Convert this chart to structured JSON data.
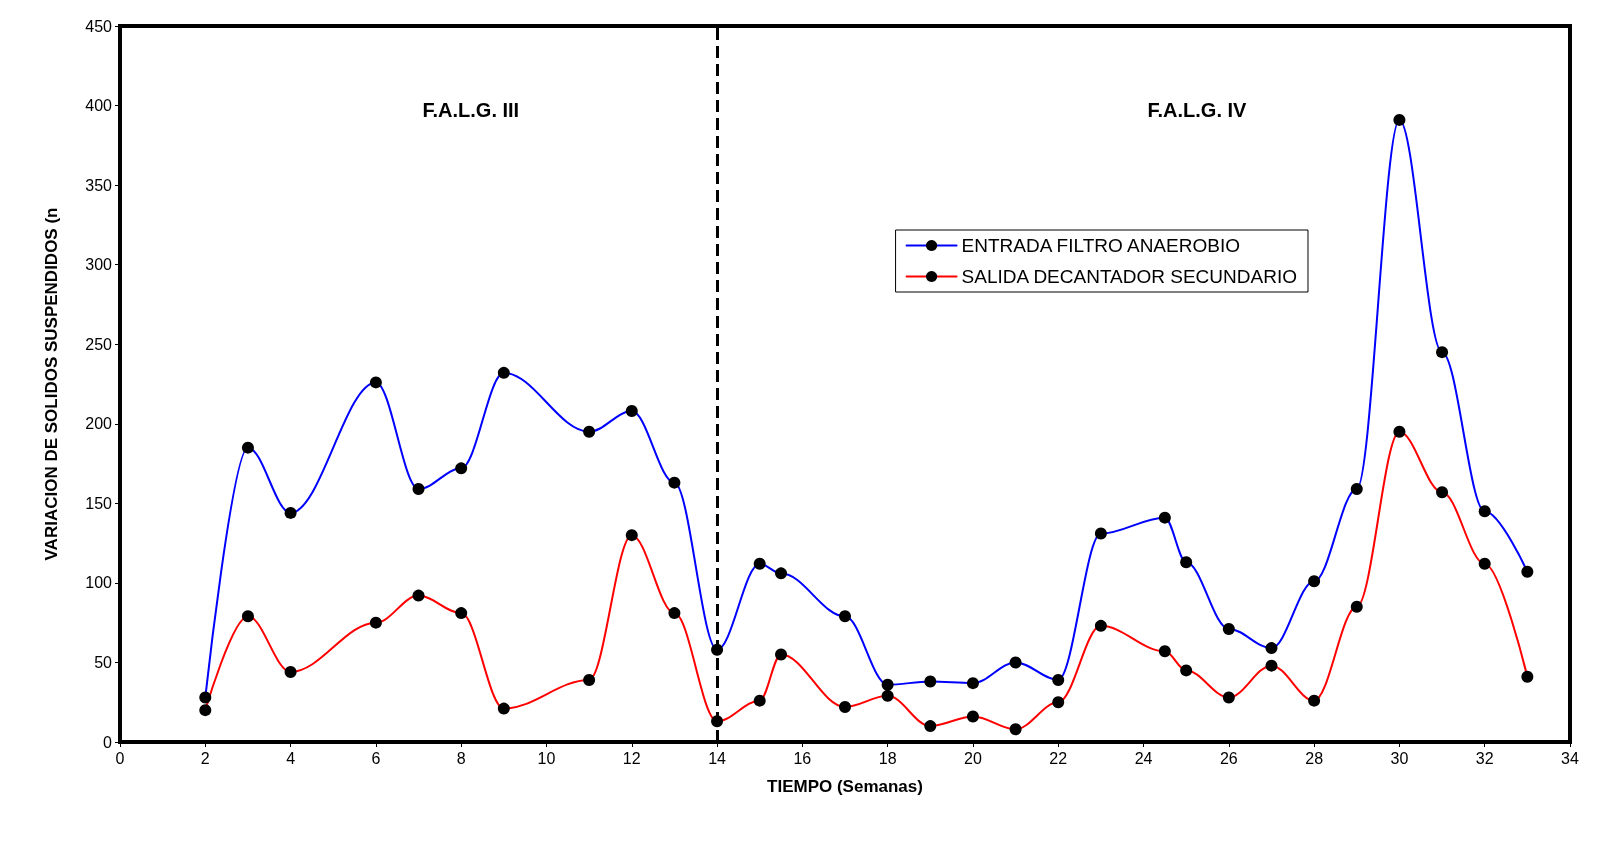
{
  "chart_data": {
    "type": "line",
    "xlabel": "TIEMPO (Semanas)",
    "ylabel": "VARIACION DE SOLIDOS SUSPENDIDOS (n",
    "xlim": [
      0,
      34
    ],
    "xticks": [
      0,
      2,
      4,
      6,
      8,
      10,
      12,
      14,
      16,
      18,
      20,
      22,
      24,
      26,
      28,
      30,
      32,
      34
    ],
    "ylim": [
      0,
      450
    ],
    "yticks": [
      0,
      50,
      100,
      150,
      200,
      250,
      300,
      350,
      400,
      450
    ],
    "grid": false,
    "legend": "top right",
    "marker": "circle",
    "line_style": "solid",
    "x": [
      2,
      3,
      4,
      6,
      7,
      8,
      9,
      11,
      12,
      13,
      14,
      15,
      15.5,
      17,
      18,
      19,
      20,
      21,
      22,
      23,
      24.5,
      25,
      26,
      27,
      28,
      29,
      30,
      31,
      32,
      33
    ],
    "series": [
      {
        "name": "ENTRADA FILTRO ANAEROBIO",
        "color": "#0000ff",
        "values": [
          28,
          185,
          144,
          226,
          159,
          172,
          232,
          195,
          208,
          163,
          58,
          112,
          106,
          79,
          36,
          38,
          37,
          50,
          39,
          131,
          141,
          113,
          71,
          59,
          101,
          159,
          391,
          245,
          145,
          107
        ]
      },
      {
        "name": "SALIDA DECANTADOR SECUNDARIO",
        "color": "#ff0000",
        "values": [
          20,
          79,
          44,
          75,
          92,
          81,
          21,
          39,
          130,
          81,
          13,
          26,
          55,
          22,
          29,
          10,
          16,
          8,
          25,
          73,
          57,
          45,
          28,
          48,
          26,
          85,
          195,
          157,
          112,
          41
        ]
      }
    ],
    "ref_lines": [
      {
        "axis": "x",
        "value": 14,
        "color": "#000000",
        "line_style": "dashed"
      }
    ],
    "annotations": [
      "F.A.L.G. III",
      "F.A.L.G. IV"
    ]
  }
}
